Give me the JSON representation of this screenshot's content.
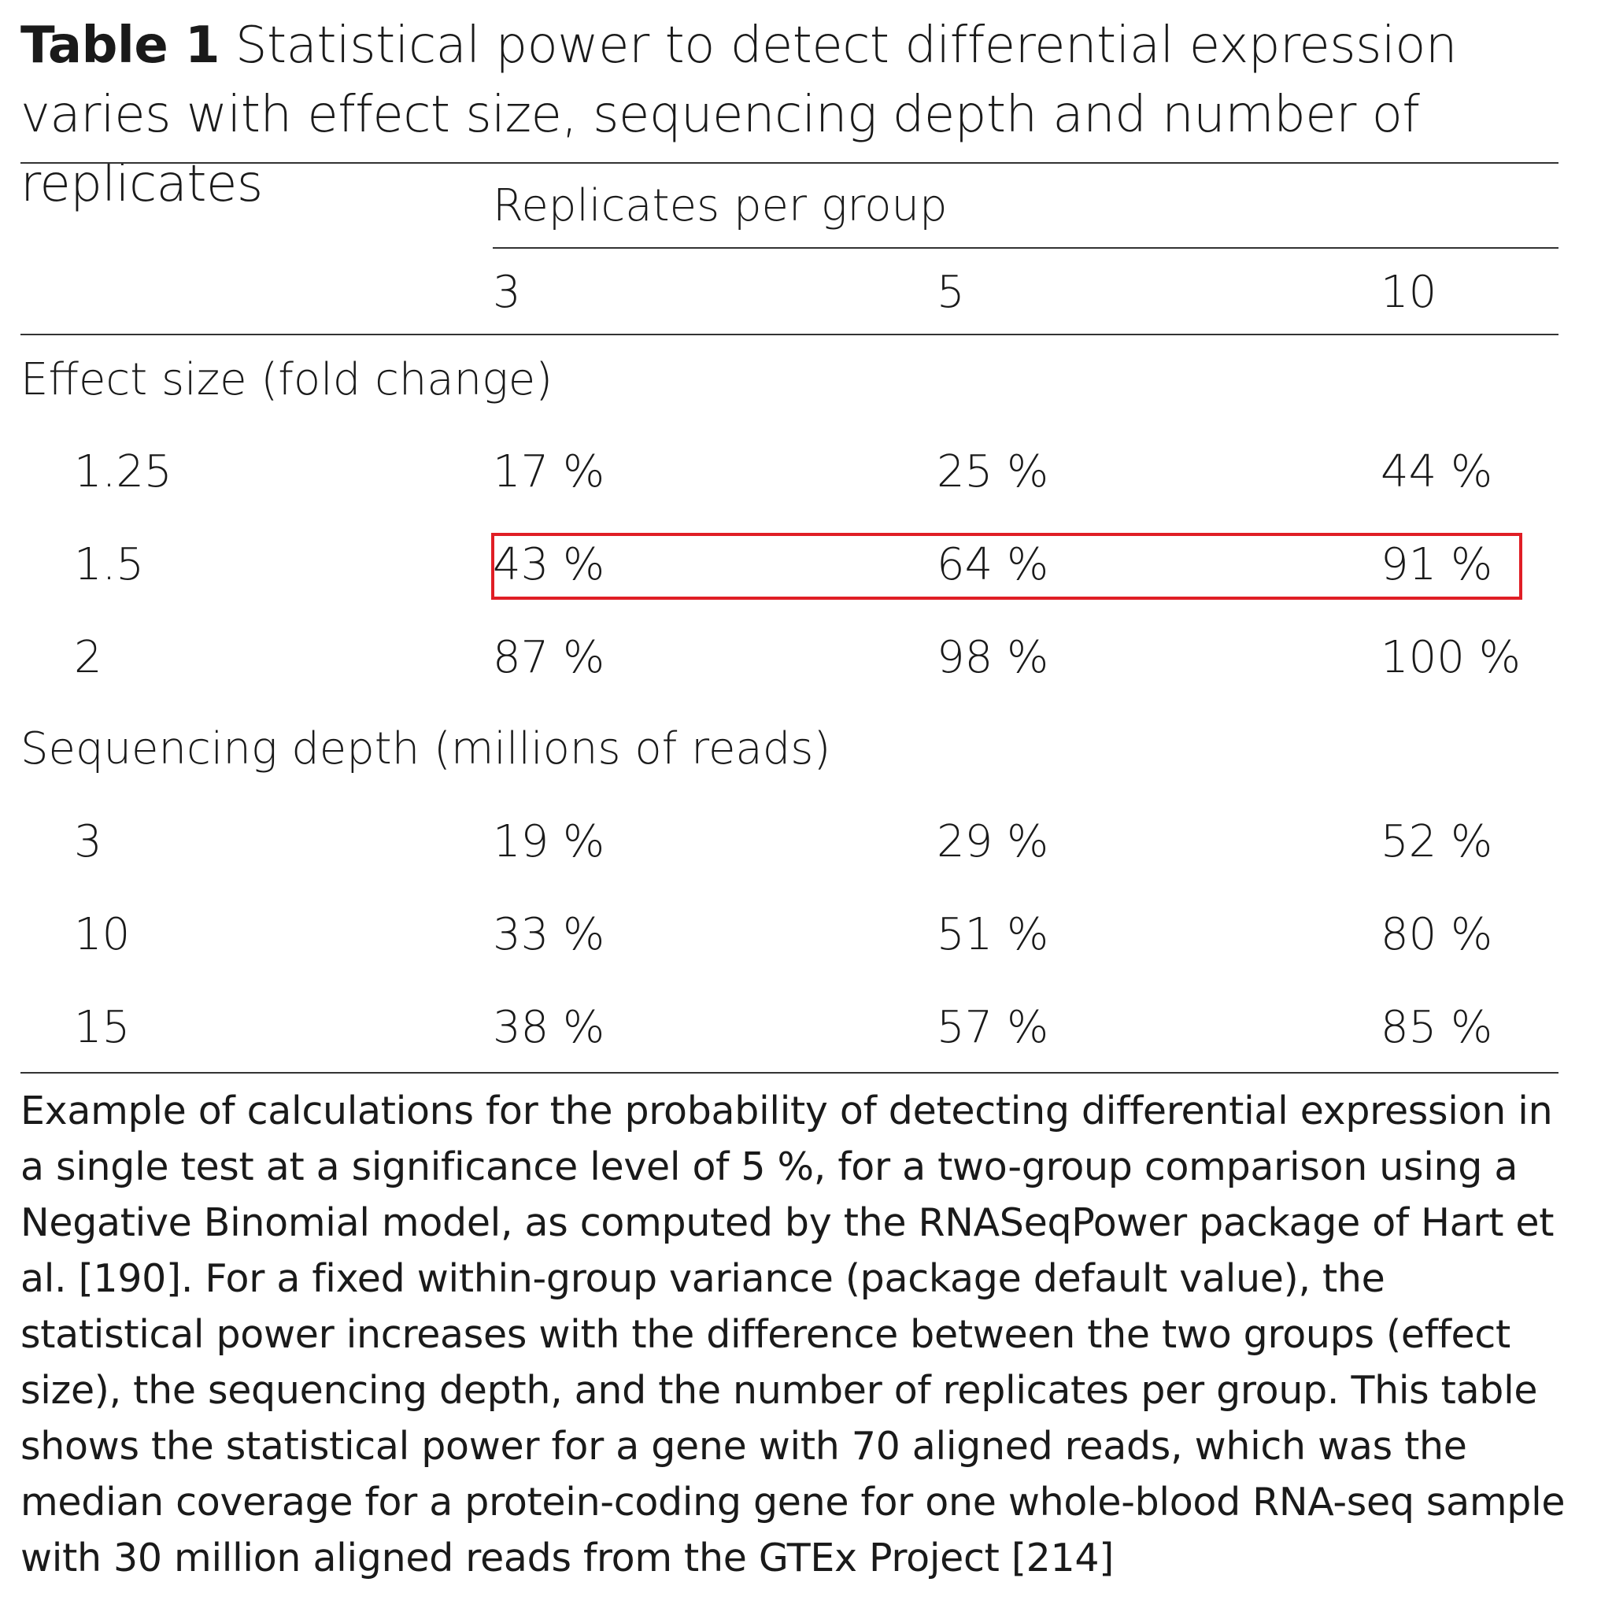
{
  "table": {
    "label": "Table 1",
    "title": "Statistical power to detect differential expression varies with effect size, sequencing depth and number of replicates",
    "column_group_header": "Replicates per group",
    "columns": [
      "3",
      "5",
      "10"
    ],
    "sections": [
      {
        "name": "Effect size (fold change)",
        "rows": [
          {
            "label": "1.25",
            "values": [
              "17 %",
              "25 %",
              "44 %"
            ]
          },
          {
            "label": "1.5",
            "values": [
              "43 %",
              "64 %",
              "91 %"
            ],
            "highlighted": true
          },
          {
            "label": "2",
            "values": [
              "87 %",
              "98 %",
              "100 %"
            ]
          }
        ]
      },
      {
        "name": "Sequencing depth (millions of reads)",
        "rows": [
          {
            "label": "3",
            "values": [
              "19 %",
              "29 %",
              "52 %"
            ]
          },
          {
            "label": "10",
            "values": [
              "33 %",
              "51 %",
              "80 %"
            ]
          },
          {
            "label": "15",
            "values": [
              "38 %",
              "57 %",
              "85 %"
            ]
          }
        ]
      }
    ],
    "highlight_color": "#e01e25",
    "caption": "Example of calculations for the probability of detecting differential expression in a single test at a significance level of 5 %, for a two-group comparison using a Negative Binomial model, as computed by the RNASeqPower package of Hart et al. [190]. For a fixed within-group variance (package default value), the statistical power increases with the difference between the two groups (effect size), the sequencing depth, and the number of replicates per group. This table shows the statistical power for a gene with 70 aligned reads, which was the median coverage for a protein-coding gene for one whole-blood RNA-seq sample with 30 million aligned reads from the GTEx Project [214]"
  }
}
